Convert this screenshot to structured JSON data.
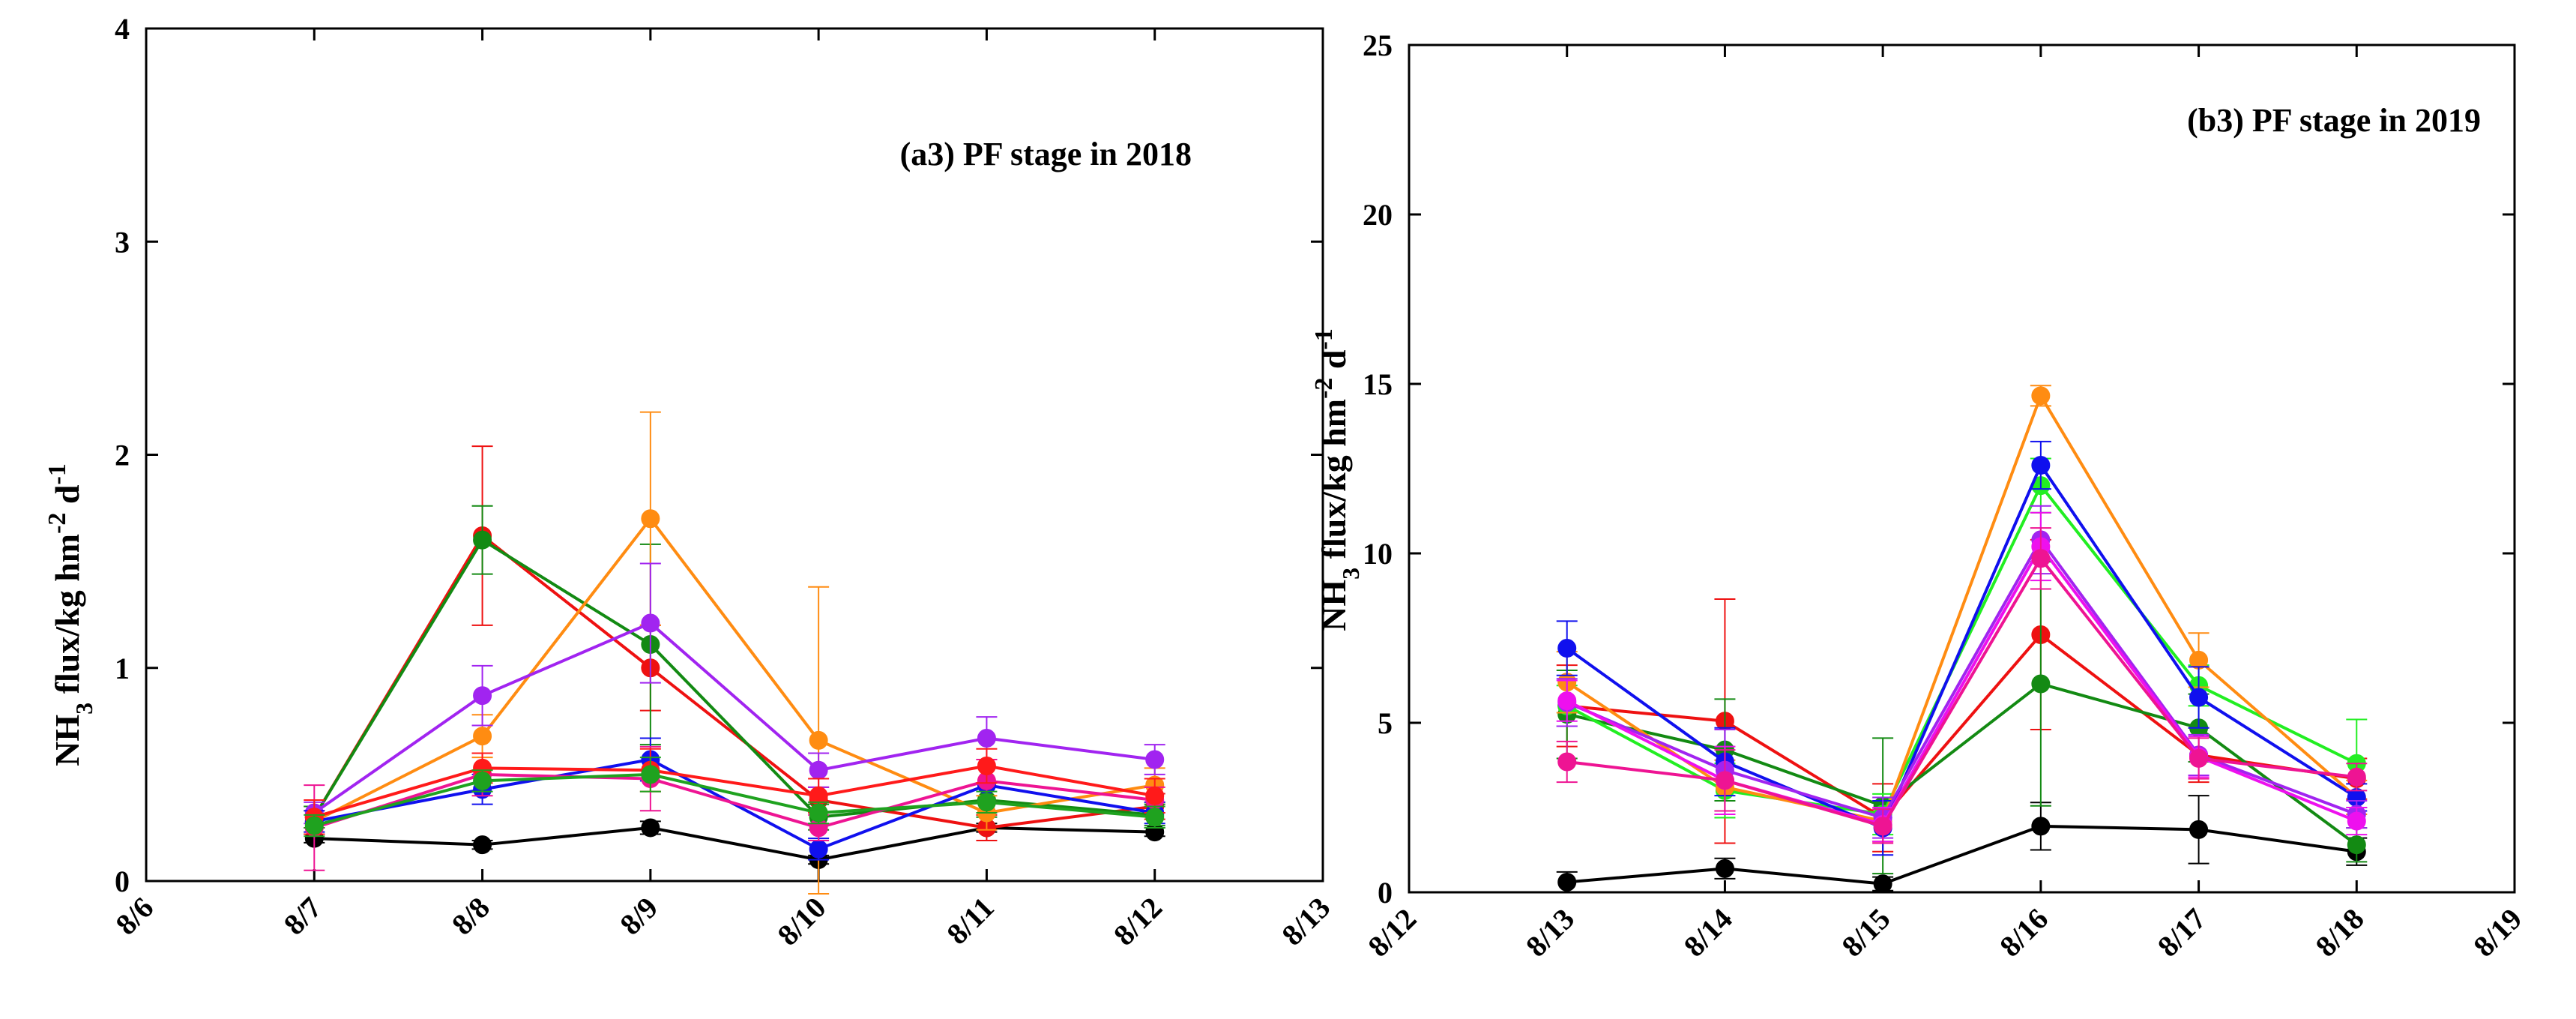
{
  "chart_data": [
    {
      "type": "line",
      "title": "(a3) PF stage in 2018",
      "ylabel": "NH3 flux/kg hm-2 d-1",
      "ylabel_parts": {
        "a": "NH",
        "b": "3",
        "c": " flux/kg hm",
        "d": "-2",
        "e": " d",
        "f": "-1"
      },
      "xlabel": "",
      "x_tick_labels": [
        "8/6",
        "8/7",
        "8/8",
        "8/9",
        "8/10",
        "8/11",
        "8/12",
        "8/13"
      ],
      "x": [
        1,
        2,
        3,
        4,
        5,
        6
      ],
      "xlim": [
        0,
        7
      ],
      "ylim": [
        0,
        4
      ],
      "y_ticks": [
        0,
        1,
        2,
        3,
        4
      ],
      "grid": false,
      "series": [
        {
          "name": "black",
          "color": "#000000",
          "values": [
            0.2,
            0.17,
            0.25,
            0.1,
            0.25,
            0.23
          ],
          "errors": [
            0.02,
            0.02,
            0.03,
            0.02,
            0.02,
            0.02
          ]
        },
        {
          "name": "red",
          "color": "#ee1111",
          "values": [
            0.3,
            1.62,
            1.0,
            0.38,
            0.25,
            0.35
          ],
          "errors": [
            0.05,
            0.42,
            0.2,
            0.06,
            0.06,
            0.06
          ]
        },
        {
          "name": "green",
          "color": "#138a13",
          "values": [
            0.3,
            1.6,
            1.11,
            0.3,
            0.38,
            0.31
          ],
          "errors": [
            0.05,
            0.16,
            0.47,
            0.06,
            0.08,
            0.05
          ]
        },
        {
          "name": "orange",
          "color": "#ff8c12",
          "values": [
            0.28,
            0.68,
            1.7,
            0.66,
            0.32,
            0.45
          ],
          "errors": [
            0.05,
            0.1,
            0.5,
            0.72,
            0.08,
            0.08
          ]
        },
        {
          "name": "purple",
          "color": "#a124f0",
          "values": [
            0.32,
            0.87,
            1.21,
            0.52,
            0.67,
            0.57
          ],
          "errors": [
            0.05,
            0.14,
            0.28,
            0.08,
            0.1,
            0.07
          ]
        },
        {
          "name": "blue",
          "color": "#1010ee",
          "values": [
            0.28,
            0.43,
            0.57,
            0.15,
            0.45,
            0.32
          ],
          "errors": [
            0.05,
            0.07,
            0.1,
            0.05,
            0.08,
            0.05
          ]
        },
        {
          "name": "pink",
          "color": "#ee1493",
          "values": [
            0.25,
            0.5,
            0.48,
            0.25,
            0.47,
            0.38
          ],
          "errors": [
            0.2,
            0.1,
            0.15,
            0.06,
            0.1,
            0.06
          ]
        },
        {
          "name": "red2",
          "color": "#ff1a1a",
          "values": [
            0.3,
            0.53,
            0.52,
            0.4,
            0.54,
            0.4
          ],
          "errors": [
            0.08,
            0.07,
            0.1,
            0.08,
            0.08,
            0.08
          ]
        },
        {
          "name": "green2",
          "color": "#1fa21f",
          "values": [
            0.26,
            0.47,
            0.5,
            0.32,
            0.37,
            0.3
          ],
          "errors": [
            0.05,
            0.05,
            0.08,
            0.05,
            0.05,
            0.05
          ]
        }
      ]
    },
    {
      "type": "line",
      "title": "(b3) PF stage in 2019",
      "ylabel": "NH3 flux/kg hm-2 d-1",
      "ylabel_parts": {
        "a": "NH",
        "b": "3",
        "c": " flux/kg hm",
        "d": "-2",
        "e": " d",
        "f": "-1"
      },
      "xlabel": "",
      "x_tick_labels": [
        "8/12",
        "8/13",
        "8/14",
        "8/15",
        "8/16",
        "8/17",
        "8/18",
        "8/19"
      ],
      "x": [
        1,
        2,
        3,
        4,
        5,
        6
      ],
      "xlim": [
        0,
        7
      ],
      "ylim": [
        0,
        25
      ],
      "y_ticks": [
        0,
        5,
        10,
        15,
        20,
        25
      ],
      "grid": false,
      "series": [
        {
          "name": "black",
          "color": "#000000",
          "values": [
            0.3,
            0.7,
            0.25,
            1.95,
            1.85,
            1.2
          ],
          "errors": [
            0.3,
            0.3,
            0.2,
            0.7,
            1.0,
            0.4
          ]
        },
        {
          "name": "red",
          "color": "#ee1111",
          "values": [
            5.5,
            5.05,
            2.2,
            7.6,
            4.05,
            3.35
          ],
          "errors": [
            1.2,
            3.6,
            1.0,
            2.8,
            0.8,
            0.6
          ]
        },
        {
          "name": "green",
          "color": "#138a13",
          "values": [
            5.25,
            4.2,
            2.55,
            6.15,
            4.85,
            1.4
          ],
          "errors": [
            1.3,
            1.5,
            2.0,
            3.6,
            1.0,
            0.5
          ]
        },
        {
          "name": "lime",
          "color": "#22ee22",
          "values": [
            5.5,
            3.0,
            2.3,
            12.0,
            6.1,
            3.8
          ],
          "errors": [
            0.6,
            0.8,
            0.6,
            0.8,
            0.6,
            1.3
          ]
        },
        {
          "name": "orange",
          "color": "#ff8c12",
          "values": [
            6.2,
            3.1,
            2.1,
            14.65,
            6.85,
            2.8
          ],
          "errors": [
            0.9,
            0.8,
            0.6,
            0.3,
            0.8,
            0.5
          ]
        },
        {
          "name": "blue",
          "color": "#1010ee",
          "values": [
            7.2,
            3.85,
            1.9,
            12.6,
            5.75,
            2.8
          ],
          "errors": [
            0.8,
            1.0,
            0.8,
            0.7,
            0.9,
            0.4
          ]
        },
        {
          "name": "purple",
          "color": "#a124f0",
          "values": [
            5.6,
            3.6,
            2.2,
            10.4,
            4.05,
            2.3
          ],
          "errors": [
            0.7,
            1.2,
            0.6,
            1.0,
            0.6,
            0.4
          ]
        },
        {
          "name": "magenta",
          "color": "#ee10ee",
          "values": [
            5.65,
            3.3,
            2.0,
            10.2,
            4.0,
            2.1
          ],
          "errors": [
            0.6,
            1.0,
            0.5,
            1.0,
            0.6,
            0.4
          ]
        },
        {
          "name": "deep-pink",
          "color": "#ee1493",
          "values": [
            3.85,
            3.3,
            1.95,
            9.85,
            3.95,
            3.4
          ],
          "errors": [
            0.6,
            0.9,
            0.5,
            0.9,
            0.6,
            0.4
          ]
        }
      ]
    }
  ]
}
